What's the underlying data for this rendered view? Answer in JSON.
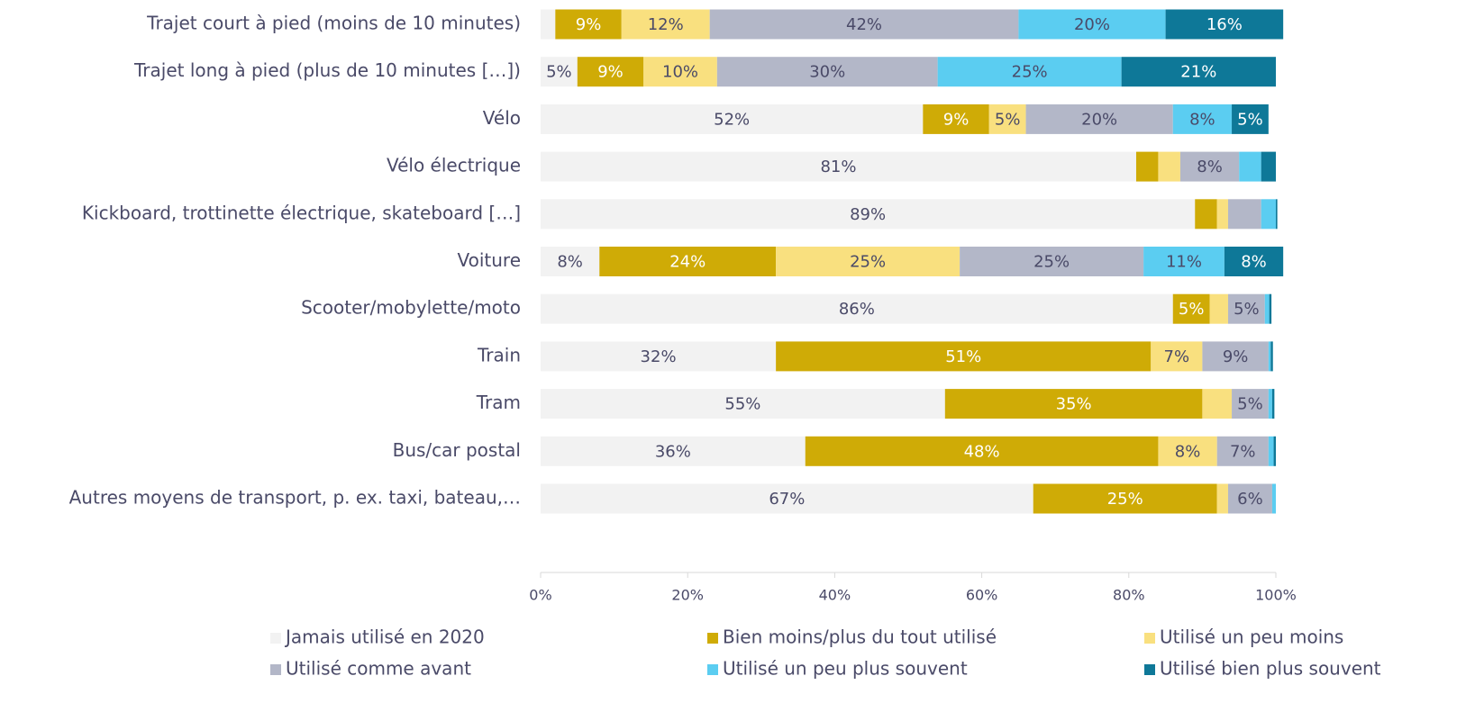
{
  "chart_data": {
    "type": "stacked_barh",
    "categories": [
      "Trajet court à pied (moins de 10 minutes)",
      "Trajet long à pied (plus de 10 minutes […])",
      "Vélo",
      "Vélo électrique",
      "Kickboard, trottinette électrique, skateboard […]",
      "Voiture",
      "Scooter/mobylette/moto",
      "Train",
      "Tram",
      "Bus/car postal",
      "Autres moyens de transport, p. ex. taxi, bateau,…"
    ],
    "series": [
      {
        "name": "Jamais utilisé en 2020",
        "color": "#f2f2f2",
        "label_color": "#4a4a68",
        "values": [
          2,
          5,
          52,
          81,
          89,
          8,
          86,
          32,
          55,
          36,
          67
        ],
        "value_labels": [
          null,
          "5%",
          "52%",
          "81%",
          "89%",
          "8%",
          "86%",
          "32%",
          "55%",
          "36%",
          "67%"
        ]
      },
      {
        "name": "Bien moins/plus du tout utilisé",
        "color": "#cfab06",
        "label_color": "#ffffff",
        "values": [
          9,
          9,
          9,
          3,
          3,
          24,
          5,
          51,
          35,
          48,
          25
        ],
        "value_labels": [
          "9%",
          "9%",
          "9%",
          null,
          null,
          "24%",
          "5%",
          "51%",
          "35%",
          "48%",
          "25%"
        ]
      },
      {
        "name": "Utilisé un peu moins",
        "color": "#f9e07f",
        "label_color": "#4a4a68",
        "values": [
          12,
          10,
          5,
          3,
          1.5,
          25,
          2.5,
          7,
          4,
          8,
          1.5
        ],
        "value_labels": [
          "12%",
          "10%",
          "5%",
          null,
          null,
          "25%",
          null,
          "7%",
          null,
          "8%",
          null
        ]
      },
      {
        "name": "Utilisé comme avant",
        "color": "#b3b7c8",
        "label_color": "#4a4a68",
        "values": [
          42,
          30,
          20,
          8,
          4.5,
          25,
          5,
          9,
          5,
          7,
          6
        ],
        "value_labels": [
          "42%",
          "30%",
          "20%",
          "8%",
          null,
          "25%",
          "5%",
          "9%",
          "5%",
          "7%",
          "6%"
        ]
      },
      {
        "name": "Utilisé un peu plus souvent",
        "color": "#5bcdf1",
        "label_color": "#4a4a68",
        "values": [
          20,
          25,
          8,
          3,
          2,
          11,
          0.6,
          0.3,
          0.5,
          0.7,
          0.5
        ],
        "value_labels": [
          "20%",
          "25%",
          "8%",
          null,
          null,
          "11%",
          null,
          null,
          null,
          null,
          null
        ]
      },
      {
        "name": "Utilisé bien plus souvent",
        "color": "#0e7898",
        "label_color": "#ffffff",
        "values": [
          16,
          21,
          5,
          2,
          0.2,
          8,
          0.3,
          0.3,
          0.3,
          0.3,
          0
        ],
        "value_labels": [
          "16%",
          "21%",
          "5%",
          null,
          null,
          "8%",
          null,
          null,
          null,
          null,
          null
        ]
      }
    ],
    "xlim": [
      0,
      100
    ],
    "xticks": [
      {
        "value": 0,
        "label": "0%"
      },
      {
        "value": 20,
        "label": "20%"
      },
      {
        "value": 40,
        "label": "40%"
      },
      {
        "value": 60,
        "label": "60%"
      },
      {
        "value": 80,
        "label": "80%"
      },
      {
        "value": 100,
        "label": "100%"
      }
    ]
  }
}
